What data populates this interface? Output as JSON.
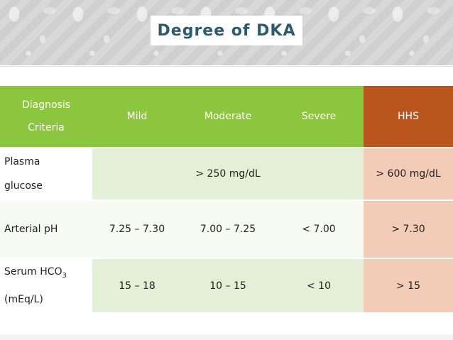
{
  "title": "Degree of DKA",
  "header": {
    "diagnosis_line1": "Diagnosis",
    "diagnosis_line2": "Criteria",
    "mild": "Mild",
    "moderate": "Moderate",
    "severe": "Severe",
    "hhs": "HHS"
  },
  "rows": [
    {
      "label_line1": "Plasma",
      "label_line2": "glucose",
      "dka_merged": "> 250 mg/dL",
      "hhs": "> 600 mg/dL"
    },
    {
      "label": "Arterial pH",
      "mild": "7.25 – 7.30",
      "moderate": "7.00 – 7.25",
      "severe": "< 7.00",
      "hhs": "> 7.30"
    },
    {
      "label_line1": "Serum HCO",
      "label_sub": "3",
      "label_line2": "(mEq/L)",
      "mild": "15 – 18",
      "moderate": "10 – 15",
      "severe": "< 10",
      "hhs": "> 15"
    }
  ],
  "colors": {
    "header_green": "#8cc63f",
    "header_hhs": "#b8541c",
    "row_light_green": "#e3efd7",
    "hhs_cell": "#f3ccb7",
    "title_color": "#2b5b6e"
  }
}
